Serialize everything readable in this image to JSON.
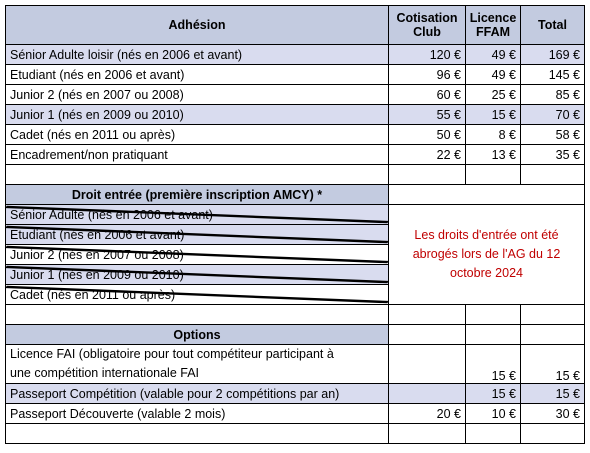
{
  "header": {
    "col1": "Adhésion",
    "col2_line1": "Cotisation",
    "col2_line2": "Club",
    "col3_line1": "Licence",
    "col3_line2": "FFAM",
    "col4": "Total"
  },
  "adhesion_rows": [
    {
      "label": "Sénior Adulte loisir (nés en 2006 et avant)",
      "club": "120 €",
      "licence": "49 €",
      "total": "169 €"
    },
    {
      "label": "Etudiant (nés en 2006 et avant)",
      "club": "96 €",
      "licence": "49 €",
      "total": "145 €"
    },
    {
      "label": "Junior 2 (nés en 2007 ou 2008)",
      "club": "60 €",
      "licence": "25 €",
      "total": "85 €"
    },
    {
      "label": "Junior 1 (nés en 2009 ou 2010)",
      "club": "55 €",
      "licence": "15 €",
      "total": "70 €"
    },
    {
      "label": "Cadet (nés en 2011 ou après)",
      "club": "50 €",
      "licence": "8 €",
      "total": "58 €"
    },
    {
      "label": "Encadrement/non pratiquant",
      "club": "22 €",
      "licence": "13 €",
      "total": "35 €"
    }
  ],
  "droit": {
    "title": "Droit entrée (première inscription AMCY) *",
    "rows": [
      "Sénior Adulte (nés en 2006 et avant)",
      "Etudiant (nés en 2006 et avant)",
      "Junior 2 (nés en 2007 ou 2008)",
      "Junior 1 (nés en 2009 ou 2010)",
      "Cadet (nés en 2011 ou après)"
    ],
    "note": "Les droits d'entrée ont été abrogés lors de l'AG du 12 octobre 2024"
  },
  "options": {
    "title": "Options",
    "rows": [
      {
        "label_line1": "Licence FAI (obligatoire pour tout compétiteur participant à",
        "label_line2": "une compétition internationale FAI",
        "club": "",
        "licence": "15 €",
        "total": "15 €"
      },
      {
        "label": "Passeport Compétition (valable pour 2 compétitions par an)",
        "club": "",
        "licence": "15 €",
        "total": "15 €"
      },
      {
        "label": "Passeport Découverte (valable 2 mois)",
        "club": "20 €",
        "licence": "10 €",
        "total": "30 €"
      }
    ]
  },
  "colors": {
    "header_bg": "#c3cbe0",
    "band_bg": "#d9dcef",
    "note_color": "#c00000"
  }
}
